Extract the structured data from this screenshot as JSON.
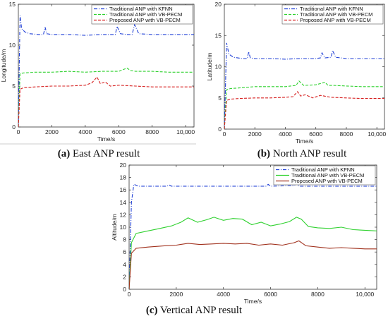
{
  "chart_data": [
    {
      "type": "line",
      "caption_letter": "(a)",
      "caption_text": " East ANP result",
      "xlabel": "Time/s",
      "ylabel": "Longitude/m",
      "xlim": [
        0,
        10500
      ],
      "ylim": [
        0,
        15
      ],
      "xticks": [
        0,
        2000,
        4000,
        6000,
        8000,
        10000
      ],
      "xtick_labels": [
        "0",
        "2000",
        "4000",
        "6000",
        "8000",
        "10,000"
      ],
      "yticks": [
        0,
        5,
        10,
        15
      ],
      "legend_position": "top-right",
      "grid": false,
      "series": [
        {
          "name": "Traditional ANP with KFNN",
          "color": "#1f3fd6",
          "style": "dashdot",
          "x": [
            0,
            100,
            200,
            400,
            700,
            1200,
            1500,
            1600,
            1700,
            2000,
            3000,
            4000,
            5000,
            5800,
            5900,
            6100,
            6500,
            6800,
            6950,
            7200,
            8000,
            9000,
            10500
          ],
          "y": [
            0,
            13.6,
            12.0,
            11.6,
            11.4,
            11.3,
            11.3,
            12.2,
            11.4,
            11.3,
            11.3,
            11.2,
            11.3,
            11.3,
            12.3,
            11.4,
            11.3,
            11.3,
            12.5,
            11.4,
            11.3,
            11.3,
            11.3
          ]
        },
        {
          "name": "Traditional ANP with VB-PECM",
          "color": "#2fd12f",
          "style": "dash",
          "x": [
            0,
            100,
            300,
            1000,
            2000,
            3000,
            4000,
            5000,
            6000,
            6500,
            6700,
            7000,
            8000,
            9000,
            10500
          ],
          "y": [
            0,
            6.5,
            6.6,
            6.7,
            6.7,
            6.8,
            6.7,
            6.8,
            6.8,
            7.2,
            6.9,
            6.8,
            6.8,
            6.7,
            6.7
          ]
        },
        {
          "name": "Proposed ANP with VB-PECM",
          "color": "#d62020",
          "style": "dash",
          "x": [
            0,
            100,
            300,
            1000,
            2000,
            3000,
            4000,
            4400,
            4700,
            4900,
            5200,
            5500,
            6000,
            7000,
            8000,
            9000,
            10500
          ],
          "y": [
            0,
            4.6,
            4.8,
            4.9,
            5.0,
            5.0,
            5.1,
            5.4,
            6.1,
            5.3,
            5.5,
            5.0,
            5.1,
            5.0,
            4.9,
            4.9,
            4.9
          ]
        }
      ]
    },
    {
      "type": "line",
      "caption_letter": "(b)",
      "caption_text": " North ANP result",
      "xlabel": "Time/s",
      "ylabel": "Latitude/m",
      "xlim": [
        0,
        10500
      ],
      "ylim": [
        0,
        20
      ],
      "xticks": [
        0,
        2000,
        4000,
        6000,
        8000,
        10000
      ],
      "xtick_labels": [
        "0",
        "2000",
        "4000",
        "6000",
        "8000",
        "10,000"
      ],
      "yticks": [
        0,
        5,
        10,
        15,
        20
      ],
      "legend_position": "top-right",
      "grid": false,
      "series": [
        {
          "name": "Traditional ANP with KFNN",
          "color": "#1f3fd6",
          "style": "dashdot",
          "x": [
            0,
            150,
            300,
            600,
            1200,
            1500,
            1600,
            1700,
            2000,
            3000,
            4000,
            5000,
            6000,
            6300,
            6400,
            6600,
            7000,
            7100,
            7300,
            8000,
            9000,
            10500
          ],
          "y": [
            0,
            13.8,
            12.0,
            11.5,
            11.3,
            11.3,
            12.4,
            11.4,
            11.3,
            11.3,
            11.2,
            11.3,
            11.3,
            11.4,
            12.2,
            11.4,
            11.5,
            12.6,
            11.5,
            11.3,
            11.3,
            11.3
          ]
        },
        {
          "name": "Traditional ANP with VB-PECM",
          "color": "#2fd12f",
          "style": "dash",
          "x": [
            0,
            150,
            400,
            1000,
            2000,
            3000,
            4000,
            4700,
            4900,
            5200,
            6000,
            6600,
            6800,
            7200,
            8000,
            9000,
            10500
          ],
          "y": [
            0,
            6.3,
            6.5,
            6.6,
            6.8,
            6.8,
            6.8,
            7.0,
            7.7,
            7.0,
            7.1,
            7.5,
            7.0,
            7.0,
            6.9,
            6.8,
            6.8
          ]
        },
        {
          "name": "Proposed ANP with VB-PECM",
          "color": "#d62020",
          "style": "dash",
          "x": [
            0,
            150,
            400,
            1000,
            2000,
            3000,
            4000,
            4500,
            4800,
            5000,
            5300,
            5800,
            6300,
            7000,
            8000,
            9000,
            10500
          ],
          "y": [
            0,
            4.6,
            4.8,
            4.9,
            5.0,
            5.0,
            5.1,
            5.2,
            6.0,
            5.3,
            5.5,
            5.0,
            5.4,
            5.1,
            5.0,
            4.9,
            4.9
          ]
        }
      ]
    },
    {
      "type": "line",
      "caption_letter": "(c)",
      "caption_text": " Vertical ANP result",
      "xlabel": "Time/s",
      "ylabel": "Altitude/m",
      "xlim": [
        0,
        10500
      ],
      "ylim": [
        0,
        20
      ],
      "xticks": [
        0,
        2000,
        4000,
        6000,
        8000,
        10000
      ],
      "xtick_labels": [
        "0",
        "2000",
        "4000",
        "6000",
        "8000",
        "10,000"
      ],
      "yticks": [
        0,
        2,
        4,
        6,
        8,
        10,
        12,
        14,
        16,
        18,
        20
      ],
      "legend_position": "top-right",
      "grid": false,
      "series": [
        {
          "name": "Traditional ANP with KFNN",
          "color": "#1f3fd6",
          "style": "dashdot",
          "x": [
            0,
            100,
            200,
            400,
            1000,
            1600,
            1700,
            1800,
            3000,
            4000,
            5000,
            5800,
            5900,
            6000,
            7000,
            7100,
            7200,
            8000,
            9000,
            10500
          ],
          "y": [
            0,
            14.0,
            16.9,
            16.6,
            16.6,
            16.6,
            16.8,
            16.6,
            16.6,
            16.6,
            16.6,
            16.6,
            16.9,
            16.6,
            16.7,
            17.0,
            16.6,
            16.6,
            16.6,
            16.6
          ]
        },
        {
          "name": "Traditional ANP with VB-PECM",
          "color": "#2fd12f",
          "style": "solid",
          "x": [
            0,
            100,
            300,
            800,
            1200,
            1800,
            2200,
            2500,
            2900,
            3300,
            3600,
            4000,
            4400,
            4800,
            5200,
            5600,
            6000,
            6400,
            6800,
            7100,
            7300,
            7600,
            8000,
            8500,
            9000,
            9500,
            10000,
            10500
          ],
          "y": [
            0,
            7.5,
            9.0,
            9.4,
            9.7,
            10.2,
            10.8,
            11.5,
            10.8,
            11.2,
            11.6,
            11.1,
            11.4,
            11.3,
            10.4,
            10.8,
            10.2,
            10.5,
            10.9,
            11.6,
            11.3,
            10.1,
            9.9,
            9.8,
            10.0,
            9.6,
            9.5,
            9.4
          ]
        },
        {
          "name": "Proposed ANP with VB-PECM",
          "color": "#a0301c",
          "style": "solid",
          "x": [
            0,
            100,
            300,
            800,
            1500,
            2000,
            2500,
            3000,
            3500,
            4000,
            4500,
            5000,
            5500,
            6000,
            6500,
            7000,
            7200,
            7500,
            8000,
            8500,
            9000,
            9500,
            10000,
            10500
          ],
          "y": [
            0,
            5.8,
            6.6,
            6.8,
            7.0,
            7.1,
            7.4,
            7.2,
            7.3,
            7.4,
            7.3,
            7.4,
            7.1,
            7.3,
            7.1,
            7.5,
            7.8,
            7.0,
            6.8,
            6.6,
            6.7,
            6.6,
            6.5,
            6.5
          ]
        }
      ]
    }
  ]
}
